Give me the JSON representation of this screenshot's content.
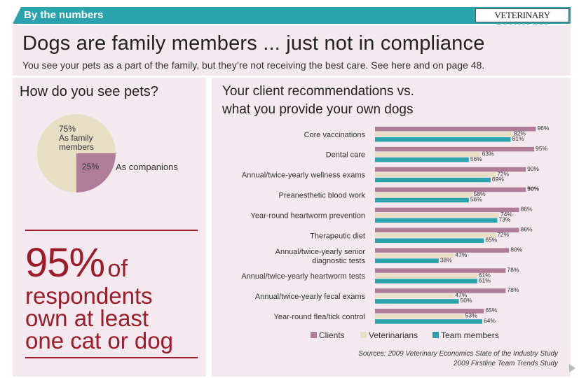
{
  "header": {
    "section_label": "By the numbers",
    "brand": "VETERINARY ECONOMICS"
  },
  "title": "Dogs are family members ... just not in compliance",
  "subtitle": "You see your pets as a part of the family, but they’re not receiving the best care. See here and on page 48.",
  "pie": {
    "heading": "How do you see pets?",
    "slices": [
      {
        "value": 75,
        "pct_label": "75%",
        "label": "As family members",
        "label_lines": [
          "As family",
          "members"
        ],
        "color": "#e8dec4"
      },
      {
        "value": 25,
        "pct_label": "25%",
        "label": "As companions",
        "color": "#b07d98"
      }
    ]
  },
  "stat": {
    "number": "95%",
    "of": "of",
    "lines": [
      "respondents",
      "own at least",
      "one cat or dog"
    ]
  },
  "chart_title": [
    "Your client recommendations vs.",
    "what you provide your own dogs"
  ],
  "chart_data": {
    "type": "bar",
    "orientation": "horizontal",
    "title": "Your client recommendations vs. what you provide your own dogs",
    "categories": [
      "Core vaccinations",
      "Dental care",
      "Annual/twice-yearly wellness exams",
      "Preanesthetic blood work",
      "Year-round heartworm prevention",
      "Therapeutic diet",
      "Annual/twice-yearly senior diagnostic tests",
      "Annual/twice-yearly heartworm tests",
      "Annual/twice-yearly fecal exams",
      "Year-round flea/tick control"
    ],
    "category_lines": [
      [
        "Core vaccinations"
      ],
      [
        "Dental care"
      ],
      [
        "Annual/twice-yearly wellness exams"
      ],
      [
        "Preanesthetic blood work"
      ],
      [
        "Year-round heartworm prevention"
      ],
      [
        "Therapeutic diet"
      ],
      [
        "Annual/twice-yearly senior",
        "diagnostic tests"
      ],
      [
        "Annual/twice-yearly heartworm tests"
      ],
      [
        "Annual/twice-yearly fecal exams"
      ],
      [
        "Year-round flea/tick control"
      ]
    ],
    "series": [
      {
        "name": "Clients",
        "color": "#b07d98",
        "values": [
          96,
          95,
          90,
          90,
          86,
          86,
          80,
          78,
          78,
          65
        ]
      },
      {
        "name": "Veterinarians",
        "color": "#e8dec4",
        "values": [
          82,
          63,
          72,
          58,
          74,
          72,
          47,
          61,
          47,
          53
        ]
      },
      {
        "name": "Team members",
        "color": "#2aa3ad",
        "values": [
          81,
          56,
          69,
          56,
          73,
          65,
          38,
          61,
          50,
          64
        ]
      }
    ],
    "xlim": [
      0,
      100
    ],
    "bold_labels": [
      {
        "category_index": 3,
        "series_index": 0
      }
    ]
  },
  "sources": {
    "line1": "Sources: 2009 Veterinary Economics State of the Industry Study",
    "line2": "2009 Firstline Team Trends Study"
  }
}
